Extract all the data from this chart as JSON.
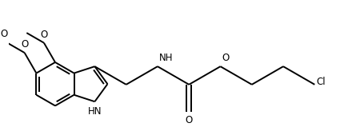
{
  "background_color": "#ffffff",
  "line_color": "#000000",
  "line_width": 1.4,
  "font_size": 8.5,
  "figsize": [
    4.31,
    1.69
  ],
  "dpi": 100,
  "xlim": [
    0.0,
    8.6
  ],
  "ylim": [
    0.0,
    3.38
  ]
}
